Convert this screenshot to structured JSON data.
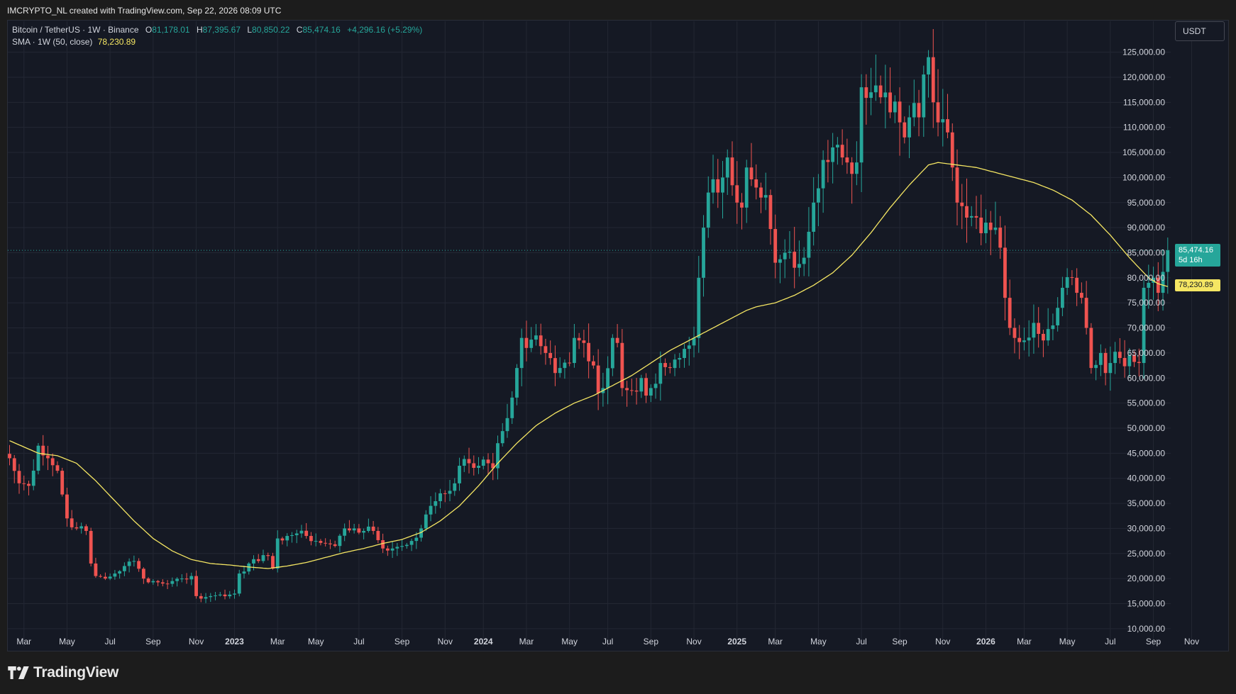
{
  "header": {
    "attribution": "IMCRYPTO_NL created with TradingView.com, Sep 22, 2026 08:09 UTC"
  },
  "legend": {
    "symbol": "Bitcoin / TetherUS · 1W · Binance",
    "open_label": "O",
    "open": "81,178.01",
    "high_label": "H",
    "high": "87,395.67",
    "low_label": "L",
    "low": "80,850.22",
    "close_label": "C",
    "close": "85,474.16",
    "change": "+4,296.16 (+5.29%)",
    "sma_label": "SMA · 1W (50, close)",
    "sma_value": "78,230.89"
  },
  "currency_button": "USDT",
  "price_tag": {
    "price": "85,474.16",
    "countdown": "5d 16h"
  },
  "sma_tag": "78,230.89",
  "branding": {
    "logo_text": "TradingView"
  },
  "colors": {
    "up": "#26a69a",
    "down": "#ef5350",
    "sma": "#f5e663",
    "background": "#151924",
    "grid": "#232733"
  },
  "chart_data": {
    "type": "candlestick",
    "title": "Bitcoin / TetherUS · 1W · Binance",
    "interval": "1W",
    "y_axis": {
      "unit": "USDT",
      "ticks": [
        10000,
        15000,
        20000,
        25000,
        30000,
        35000,
        40000,
        45000,
        50000,
        55000,
        60000,
        65000,
        70000,
        75000,
        80000,
        85000,
        90000,
        95000,
        100000,
        105000,
        110000,
        115000,
        120000,
        125000
      ],
      "tick_labels": [
        "10,000.00",
        "15,000.00",
        "20,000.00",
        "25,000.00",
        "30,000.00",
        "35,000.00",
        "40,000.00",
        "45,000.00",
        "50,000.00",
        "55,000.00",
        "60,000.00",
        "65,000.00",
        "70,000.00",
        "75,000.00",
        "80,000.00",
        "85,000.00",
        "90,000.00",
        "95,000.00",
        "100,000.00",
        "105,000.00",
        "110,000.00",
        "115,000.00",
        "120,000.00",
        "125,000.00"
      ],
      "range": [
        8000,
        128000
      ]
    },
    "x_axis": {
      "range_weeks": [
        0,
        244
      ],
      "ticks": [
        {
          "label": "Mar",
          "week": 3
        },
        {
          "label": "May",
          "week": 12
        },
        {
          "label": "Jul",
          "week": 21
        },
        {
          "label": "Sep",
          "week": 30
        },
        {
          "label": "Nov",
          "week": 39
        },
        {
          "label": "2023",
          "week": 47,
          "year": true
        },
        {
          "label": "Mar",
          "week": 56
        },
        {
          "label": "May",
          "week": 64
        },
        {
          "label": "Jul",
          "week": 73
        },
        {
          "label": "Sep",
          "week": 82
        },
        {
          "label": "Nov",
          "week": 91
        },
        {
          "label": "2024",
          "week": 99,
          "year": true
        },
        {
          "label": "Mar",
          "week": 108
        },
        {
          "label": "May",
          "week": 117
        },
        {
          "label": "Jul",
          "week": 125
        },
        {
          "label": "Sep",
          "week": 134
        },
        {
          "label": "Nov",
          "week": 143
        },
        {
          "label": "2025",
          "week": 152,
          "year": true
        },
        {
          "label": "Mar",
          "week": 160
        },
        {
          "label": "May",
          "week": 169
        },
        {
          "label": "Jul",
          "week": 178
        },
        {
          "label": "Sep",
          "week": 186
        },
        {
          "label": "Nov",
          "week": 195
        },
        {
          "label": "2026",
          "week": 204,
          "year": true
        },
        {
          "label": "Mar",
          "week": 212
        },
        {
          "label": "May",
          "week": 221
        },
        {
          "label": "Jul",
          "week": 230
        },
        {
          "label": "Sep",
          "week": 239
        },
        {
          "label": "Nov",
          "week": 247
        }
      ]
    },
    "close_keypoints": [
      [
        0,
        44000
      ],
      [
        2,
        39000
      ],
      [
        4,
        38500
      ],
      [
        6,
        46500
      ],
      [
        8,
        44000
      ],
      [
        10,
        41500
      ],
      [
        12,
        32000
      ],
      [
        14,
        30000
      ],
      [
        16,
        29500
      ],
      [
        17,
        23000
      ],
      [
        18,
        20500
      ],
      [
        20,
        20000
      ],
      [
        22,
        21000
      ],
      [
        24,
        22500
      ],
      [
        26,
        23500
      ],
      [
        28,
        20000
      ],
      [
        30,
        19500
      ],
      [
        32,
        19000
      ],
      [
        34,
        19500
      ],
      [
        36,
        20000
      ],
      [
        38,
        20500
      ],
      [
        39,
        16500
      ],
      [
        40,
        16000
      ],
      [
        42,
        16500
      ],
      [
        44,
        16800
      ],
      [
        46,
        16800
      ],
      [
        47,
        17000
      ],
      [
        48,
        21000
      ],
      [
        50,
        23000
      ],
      [
        52,
        23500
      ],
      [
        54,
        24500
      ],
      [
        55,
        22000
      ],
      [
        56,
        28000
      ],
      [
        58,
        28500
      ],
      [
        60,
        29000
      ],
      [
        62,
        28500
      ],
      [
        64,
        27500
      ],
      [
        66,
        27000
      ],
      [
        68,
        26500
      ],
      [
        70,
        30000
      ],
      [
        72,
        30000
      ],
      [
        74,
        29500
      ],
      [
        76,
        29500
      ],
      [
        78,
        26000
      ],
      [
        80,
        26000
      ],
      [
        82,
        26500
      ],
      [
        84,
        27500
      ],
      [
        86,
        30000
      ],
      [
        88,
        34500
      ],
      [
        90,
        37000
      ],
      [
        92,
        37500
      ],
      [
        94,
        42500
      ],
      [
        96,
        43000
      ],
      [
        98,
        42500
      ],
      [
        100,
        43000
      ],
      [
        101,
        42000
      ],
      [
        102,
        47000
      ],
      [
        104,
        52000
      ],
      [
        106,
        62000
      ],
      [
        107,
        68000
      ],
      [
        108,
        66000
      ],
      [
        110,
        68500
      ],
      [
        112,
        65000
      ],
      [
        114,
        61000
      ],
      [
        115,
        62000
      ],
      [
        117,
        63000
      ],
      [
        118,
        68000
      ],
      [
        119,
        67500
      ],
      [
        120,
        67000
      ],
      [
        122,
        62500
      ],
      [
        123,
        57000
      ],
      [
        124,
        58000
      ],
      [
        126,
        68000
      ],
      [
        127,
        67000
      ],
      [
        128,
        58000
      ],
      [
        130,
        57500
      ],
      [
        132,
        60000
      ],
      [
        133,
        56500
      ],
      [
        134,
        58000
      ],
      [
        136,
        63000
      ],
      [
        138,
        62000
      ],
      [
        140,
        64000
      ],
      [
        142,
        66500
      ],
      [
        143,
        68000
      ],
      [
        144,
        80000
      ],
      [
        145,
        90000
      ],
      [
        146,
        97000
      ],
      [
        148,
        97000
      ],
      [
        149,
        100000
      ],
      [
        150,
        104000
      ],
      [
        152,
        95000
      ],
      [
        153,
        94000
      ],
      [
        154,
        102000
      ],
      [
        156,
        98000
      ],
      [
        157,
        96000
      ],
      [
        158,
        96500
      ],
      [
        160,
        83000
      ],
      [
        162,
        85000
      ],
      [
        164,
        82000
      ],
      [
        166,
        84000
      ],
      [
        168,
        95000
      ],
      [
        170,
        103500
      ],
      [
        172,
        106000
      ],
      [
        174,
        104000
      ],
      [
        175,
        103000
      ],
      [
        177,
        103000
      ],
      [
        178,
        118000
      ],
      [
        180,
        117000
      ],
      [
        182,
        116000
      ],
      [
        184,
        113000
      ],
      [
        186,
        111000
      ],
      [
        187,
        108000
      ],
      [
        188,
        112000
      ],
      [
        190,
        112000
      ],
      [
        192,
        124000
      ],
      [
        193,
        115000
      ],
      [
        194,
        111000
      ],
      [
        196,
        109000
      ],
      [
        197,
        102000
      ],
      [
        198,
        95000
      ],
      [
        200,
        92000
      ],
      [
        202,
        92000
      ],
      [
        204,
        91000
      ],
      [
        206,
        90000
      ],
      [
        207,
        86000
      ],
      [
        208,
        76000
      ],
      [
        209,
        70000
      ],
      [
        210,
        68000
      ],
      [
        212,
        67500
      ],
      [
        214,
        71000
      ],
      [
        216,
        67500
      ],
      [
        218,
        70500
      ],
      [
        219,
        74000
      ],
      [
        220,
        78000
      ],
      [
        222,
        80000
      ],
      [
        223,
        77000
      ],
      [
        224,
        76000
      ],
      [
        225,
        70000
      ],
      [
        226,
        62000
      ],
      [
        228,
        65000
      ],
      [
        229,
        61000
      ],
      [
        230,
        63000
      ],
      [
        232,
        64000
      ],
      [
        234,
        64500
      ],
      [
        236,
        63000
      ],
      [
        237,
        78000
      ],
      [
        238,
        79000
      ],
      [
        239,
        80000
      ],
      [
        240,
        77000
      ],
      [
        241,
        81178
      ],
      [
        242,
        85474
      ]
    ],
    "sma_keypoints": [
      [
        0,
        47500
      ],
      [
        6,
        45000
      ],
      [
        10,
        44500
      ],
      [
        14,
        43000
      ],
      [
        18,
        39500
      ],
      [
        22,
        35500
      ],
      [
        26,
        31500
      ],
      [
        30,
        28000
      ],
      [
        34,
        25500
      ],
      [
        38,
        23800
      ],
      [
        42,
        23000
      ],
      [
        46,
        22700
      ],
      [
        50,
        22300
      ],
      [
        54,
        22000
      ],
      [
        58,
        22500
      ],
      [
        62,
        23200
      ],
      [
        66,
        24200
      ],
      [
        70,
        25200
      ],
      [
        74,
        26000
      ],
      [
        78,
        27000
      ],
      [
        82,
        27800
      ],
      [
        86,
        29200
      ],
      [
        90,
        31500
      ],
      [
        94,
        34500
      ],
      [
        98,
        38500
      ],
      [
        102,
        43000
      ],
      [
        106,
        47000
      ],
      [
        110,
        50500
      ],
      [
        114,
        53000
      ],
      [
        118,
        55000
      ],
      [
        122,
        56500
      ],
      [
        126,
        58500
      ],
      [
        130,
        60500
      ],
      [
        134,
        63000
      ],
      [
        138,
        65500
      ],
      [
        142,
        67500
      ],
      [
        146,
        69500
      ],
      [
        150,
        71500
      ],
      [
        154,
        73500
      ],
      [
        156,
        74200
      ],
      [
        160,
        75000
      ],
      [
        164,
        76500
      ],
      [
        168,
        78500
      ],
      [
        172,
        81000
      ],
      [
        176,
        84500
      ],
      [
        180,
        89000
      ],
      [
        184,
        94000
      ],
      [
        188,
        98500
      ],
      [
        192,
        102500
      ],
      [
        194,
        103000
      ],
      [
        198,
        102500
      ],
      [
        202,
        102000
      ],
      [
        206,
        101000
      ],
      [
        210,
        100000
      ],
      [
        214,
        99000
      ],
      [
        218,
        97500
      ],
      [
        222,
        95500
      ],
      [
        226,
        92500
      ],
      [
        230,
        88500
      ],
      [
        234,
        84000
      ],
      [
        238,
        80000
      ],
      [
        240,
        78800
      ],
      [
        242,
        78231
      ]
    ],
    "last_close": 85474.16,
    "sma_last": 78230.89,
    "series": [
      {
        "name": "Bitcoin / TetherUS · 1W · Binance",
        "role": "candles"
      },
      {
        "name": "SMA · 1W (50, close)",
        "role": "line"
      }
    ]
  }
}
